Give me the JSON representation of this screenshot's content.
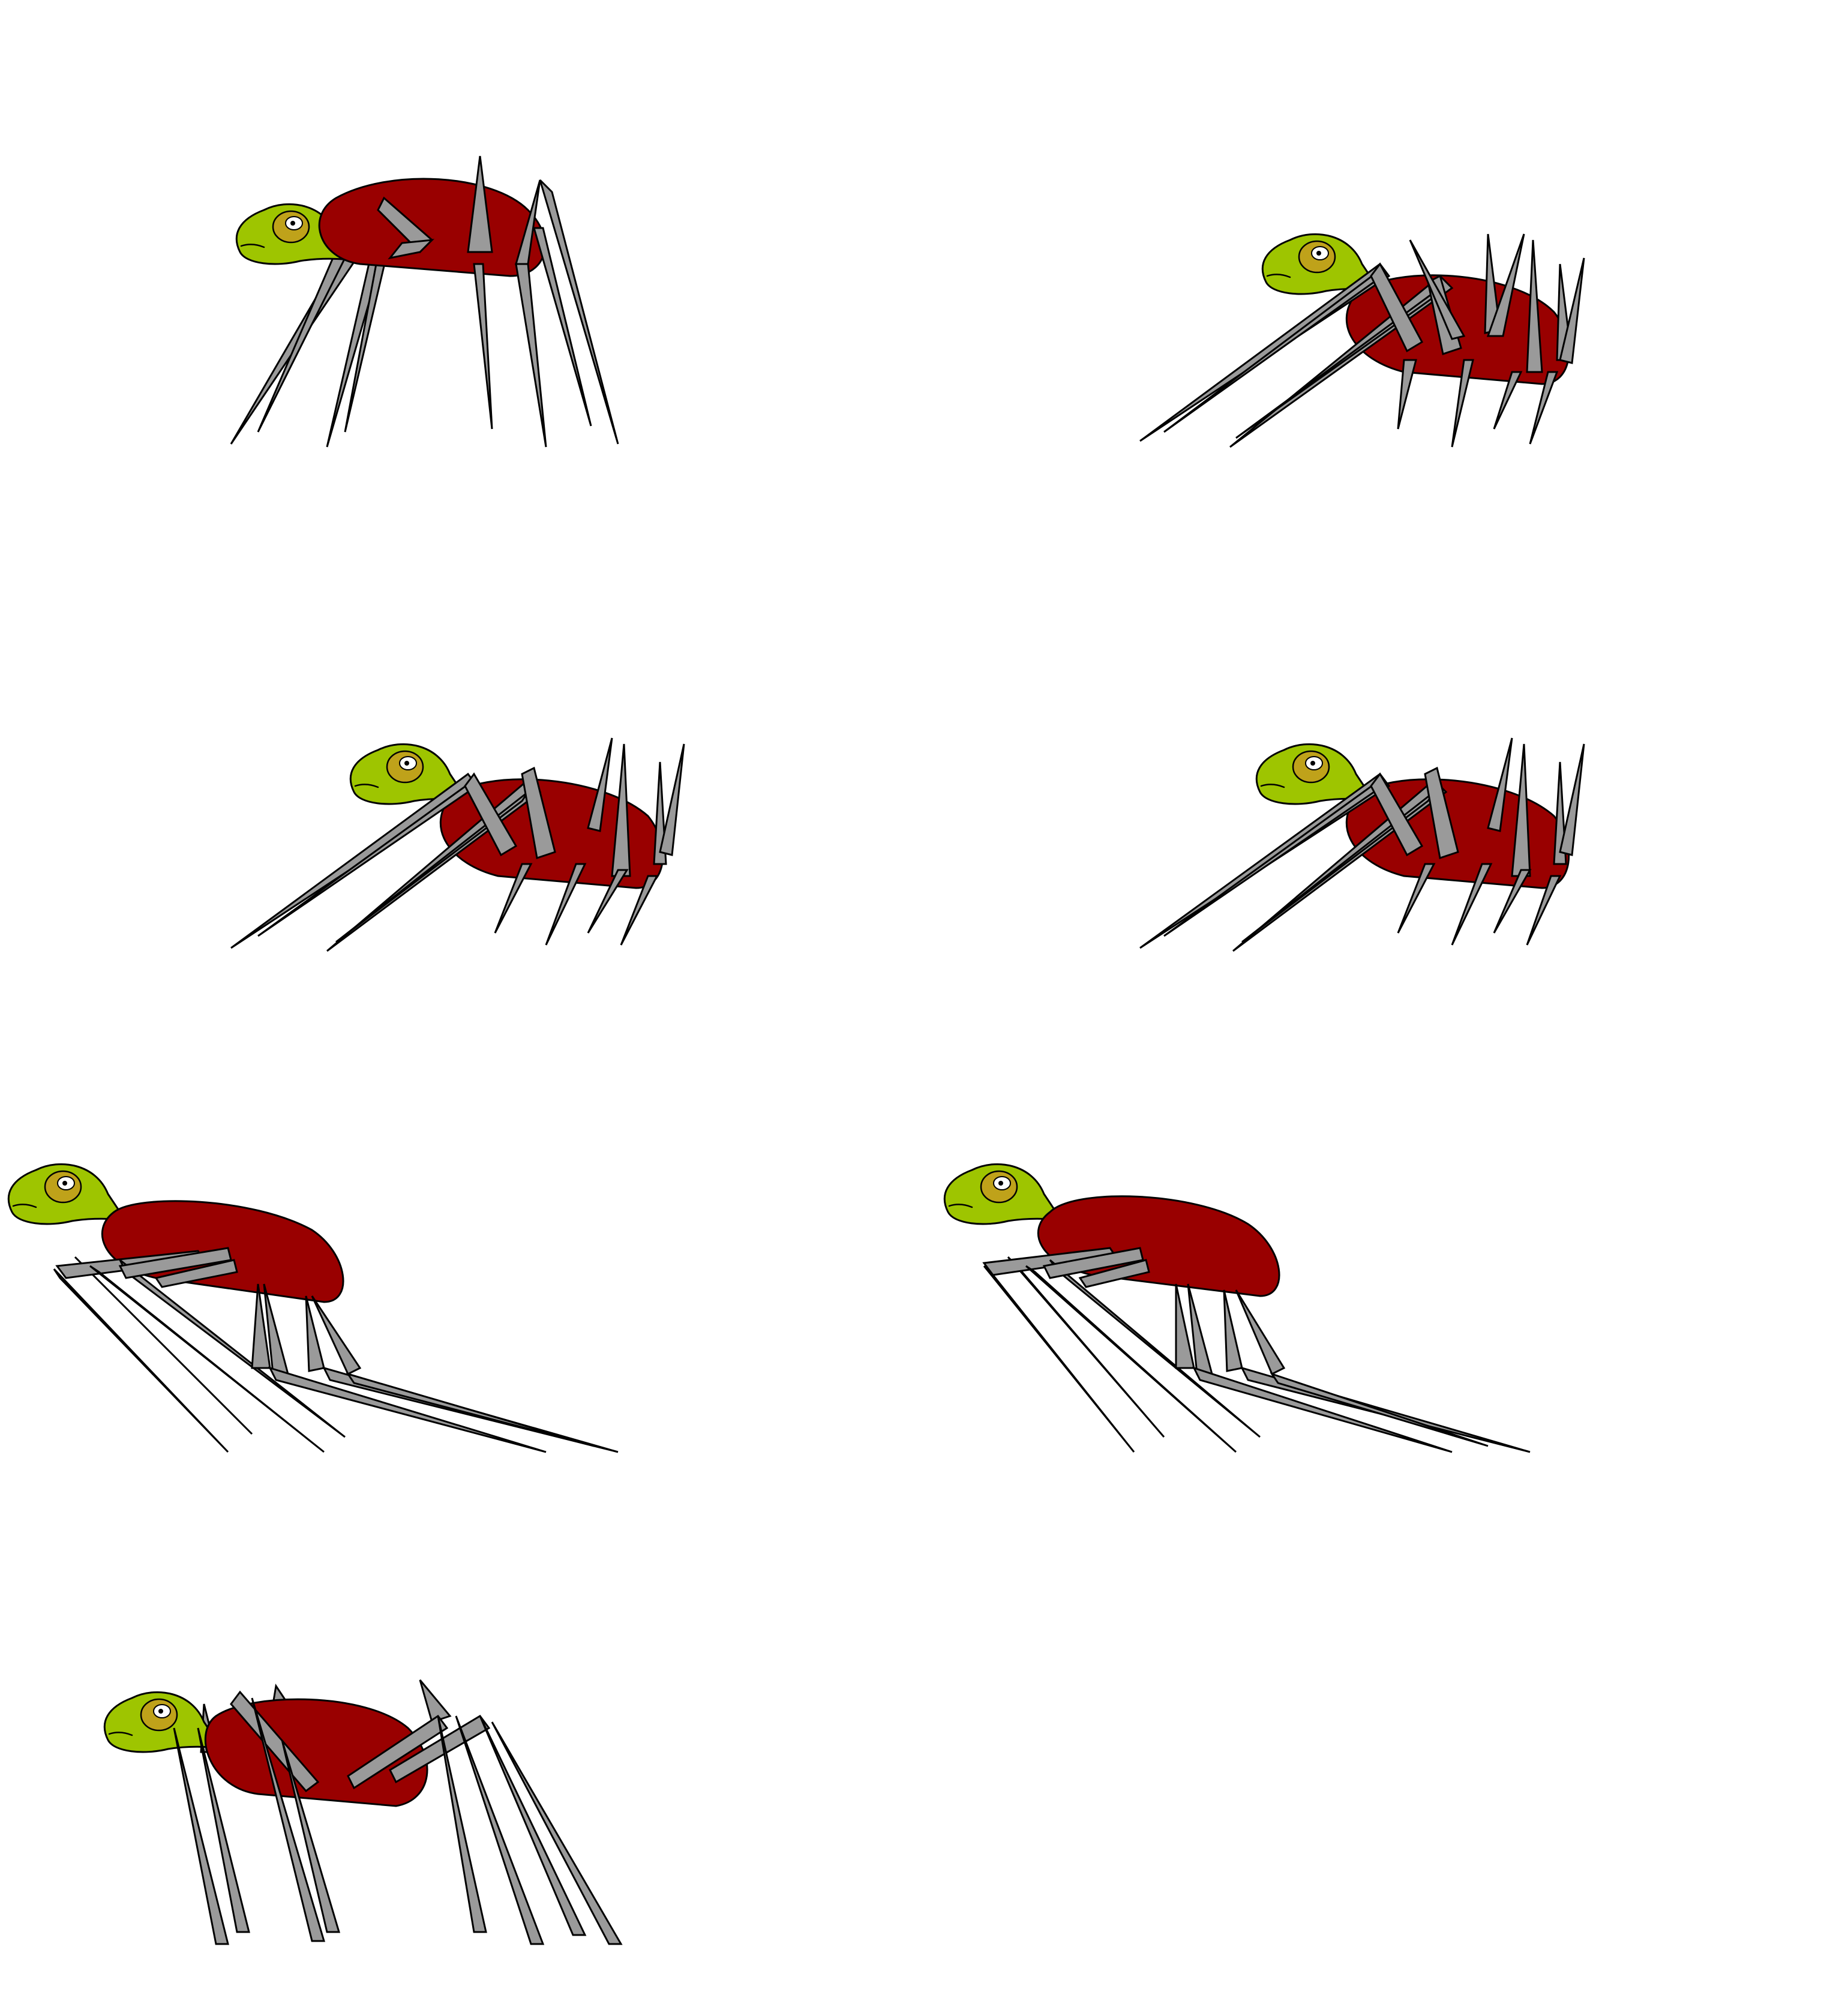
{
  "sprite_sheet": {
    "background": "#ffffff",
    "colors": {
      "shell": "#990000",
      "head": "#9ec500",
      "eye_patch": "#bfa21a",
      "leg": "#9a9a9a",
      "outline": "#000000"
    },
    "frames": [
      {
        "pose": "standing"
      },
      {
        "pose": "lean-forward"
      },
      {
        "pose": "lean-forward"
      },
      {
        "pose": "lean-forward"
      },
      {
        "pose": "crouch-lunge"
      },
      {
        "pose": "crouch-lunge"
      },
      {
        "pose": "standing-wide"
      }
    ]
  }
}
